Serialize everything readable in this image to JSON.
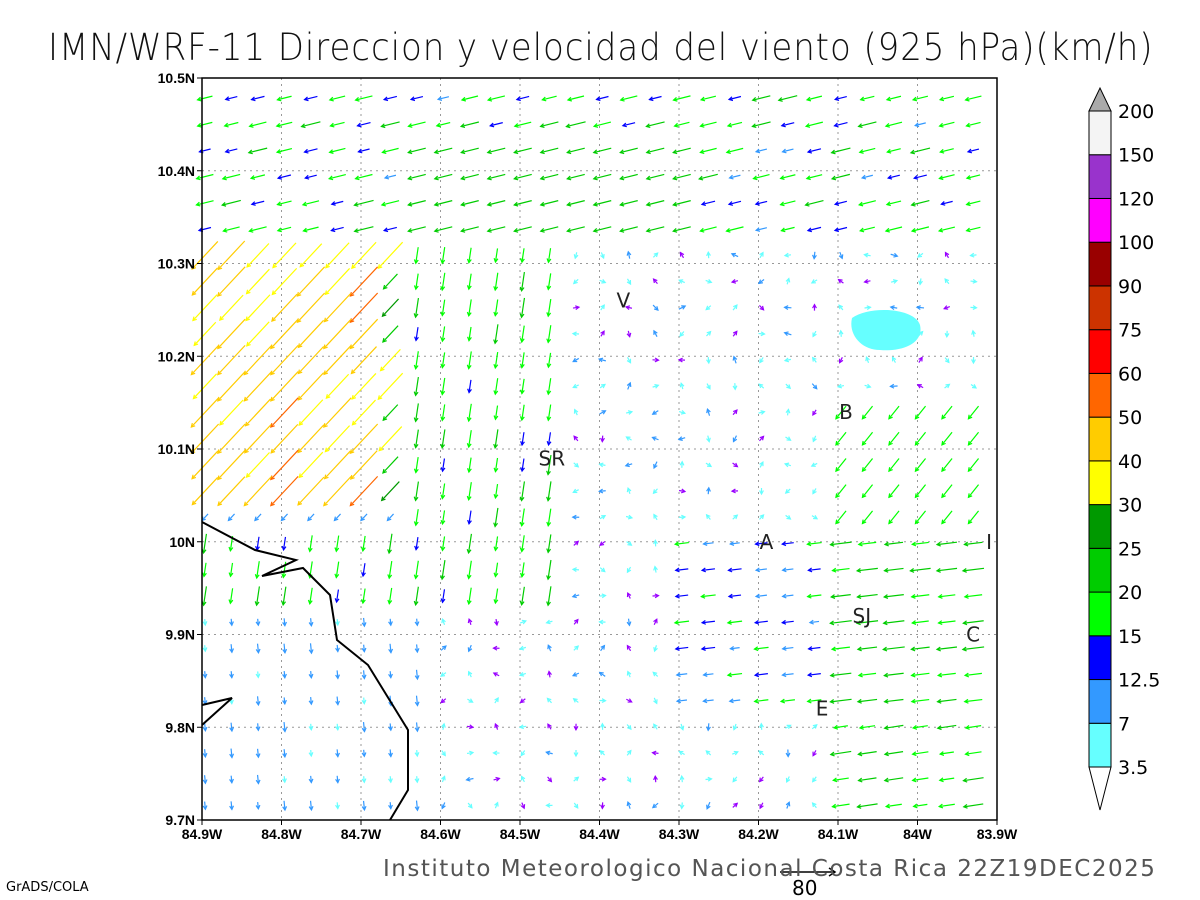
{
  "title": "IMN/WRF-11 Direccion y velocidad del viento (925 hPa)(km/h)",
  "footer": "Instituto Meteorologico Nacional Costa Rica 22Z19DEC2025",
  "credit": "GrADS/COLA",
  "reference_vector_label": "80",
  "axes": {
    "lat_labels": [
      "10.5N",
      "10.4N",
      "10.3N",
      "10.2N",
      "10.1N",
      "10N",
      "9.9N",
      "9.8N",
      "9.7N"
    ],
    "lon_labels": [
      "84.9W",
      "84.8W",
      "84.7W",
      "84.6W",
      "84.5W",
      "84.4W",
      "84.3W",
      "84.2W",
      "84.1W",
      "84W",
      "83.9W"
    ],
    "lat_range": [
      9.7,
      10.5
    ],
    "lon_range": [
      -84.9,
      -83.9
    ]
  },
  "places": [
    {
      "label": "V",
      "lon": -84.37,
      "lat": 10.26
    },
    {
      "label": "SR",
      "lon": -84.46,
      "lat": 10.09
    },
    {
      "label": "B",
      "lon": -84.09,
      "lat": 10.14
    },
    {
      "label": "A",
      "lon": -84.19,
      "lat": 10.0
    },
    {
      "label": "I",
      "lon": -83.91,
      "lat": 10.0
    },
    {
      "label": "SJ",
      "lon": -84.07,
      "lat": 9.92
    },
    {
      "label": "C",
      "lon": -83.93,
      "lat": 9.9
    },
    {
      "label": "E",
      "lon": -84.12,
      "lat": 9.82
    }
  ],
  "colorbar": {
    "labels": [
      "3.5",
      "7",
      "12.5",
      "15",
      "20",
      "25",
      "30",
      "40",
      "50",
      "60",
      "75",
      "90",
      "100",
      "120",
      "150",
      "200"
    ],
    "colors": [
      "#66ffff",
      "#3399ff",
      "#0000ff",
      "#00ff00",
      "#00cc00",
      "#009900",
      "#ffff00",
      "#ffcc00",
      "#ff6600",
      "#ff0000",
      "#cc3300",
      "#990000",
      "#ff00ff",
      "#9933cc",
      "#f4f4f4"
    ],
    "under_color": "#ffffff",
    "over_color": "#aaaaaa"
  }
}
